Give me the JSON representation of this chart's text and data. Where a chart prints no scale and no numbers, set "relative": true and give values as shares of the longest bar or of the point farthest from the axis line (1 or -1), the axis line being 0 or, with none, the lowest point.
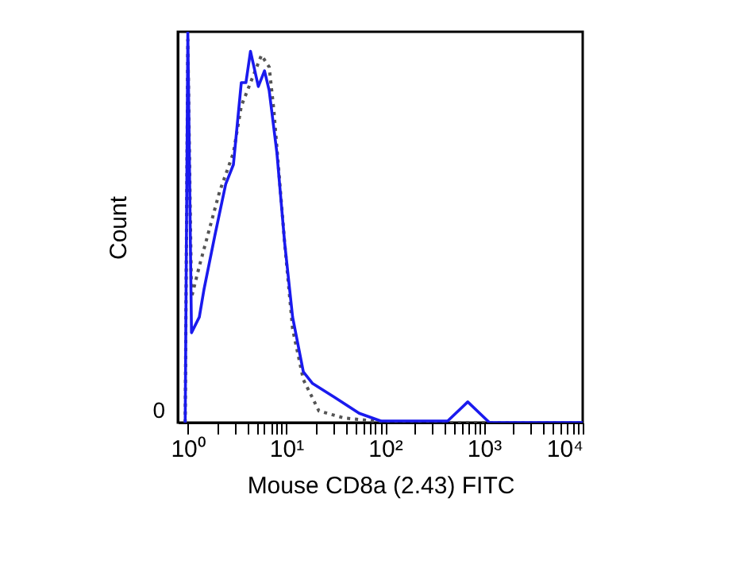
{
  "chart_data": {
    "type": "line",
    "relative": true,
    "xlabel": "Mouse CD8a (2.43) FITC",
    "ylabel": "Count",
    "log": "x",
    "grid": false,
    "legend": false,
    "marker": "none",
    "xlim": [
      0.8,
      10000
    ],
    "xticks": [
      {
        "value": 1,
        "label": "10⁰"
      },
      {
        "value": 2,
        "label": null
      },
      {
        "value": 3,
        "label": null
      },
      {
        "value": 4,
        "label": null
      },
      {
        "value": 5,
        "label": null
      },
      {
        "value": 6,
        "label": null
      },
      {
        "value": 7,
        "label": null
      },
      {
        "value": 8,
        "label": null
      },
      {
        "value": 9,
        "label": null
      },
      {
        "value": 10,
        "label": "10¹"
      },
      {
        "value": 20,
        "label": null
      },
      {
        "value": 30,
        "label": null
      },
      {
        "value": 40,
        "label": null
      },
      {
        "value": 50,
        "label": null
      },
      {
        "value": 60,
        "label": null
      },
      {
        "value": 70,
        "label": null
      },
      {
        "value": 80,
        "label": null
      },
      {
        "value": 90,
        "label": null
      },
      {
        "value": 100,
        "label": "10²"
      },
      {
        "value": 200,
        "label": null
      },
      {
        "value": 300,
        "label": null
      },
      {
        "value": 400,
        "label": null
      },
      {
        "value": 500,
        "label": null
      },
      {
        "value": 600,
        "label": null
      },
      {
        "value": 700,
        "label": null
      },
      {
        "value": 800,
        "label": null
      },
      {
        "value": 900,
        "label": null
      },
      {
        "value": 1000,
        "label": "10³"
      },
      {
        "value": 2000,
        "label": null
      },
      {
        "value": 3000,
        "label": null
      },
      {
        "value": 4000,
        "label": null
      },
      {
        "value": 5000,
        "label": null
      },
      {
        "value": 6000,
        "label": null
      },
      {
        "value": 7000,
        "label": null
      },
      {
        "value": 8000,
        "label": null
      },
      {
        "value": 9000,
        "label": null
      },
      {
        "value": 10000,
        "label": "10⁴"
      }
    ],
    "annotations": [
      "0"
    ],
    "series": [
      {
        "color": "#555555",
        "line_style": "dotted",
        "x": [
          0.95,
          1.01,
          1.1,
          1.32,
          2.11,
          2.92,
          3.51,
          4.68,
          5.61,
          6.72,
          7.49,
          9.64,
          11.6,
          14.9,
          21.4,
          38.1,
          78.5,
          121,
          10000
        ],
        "values": [
          0,
          0.98,
          0.32,
          0.4,
          0.59,
          0.69,
          0.81,
          0.89,
          0.94,
          0.91,
          0.8,
          0.46,
          0.24,
          0.11,
          0.03,
          0.012,
          0.004,
          0,
          0
        ]
      },
      {
        "color": "#1a1aee",
        "line_style": "solid",
        "x": [
          0.95,
          1.01,
          1.1,
          1.32,
          1.47,
          1.9,
          2.44,
          2.92,
          3.51,
          3.91,
          4.35,
          5.22,
          6.03,
          6.72,
          8.05,
          9.64,
          11.6,
          14.9,
          18.5,
          30.7,
          54.7,
          90.7,
          101,
          430,
          687,
          1140,
          10000
        ],
        "values": [
          0,
          1,
          0.23,
          0.27,
          0.34,
          0.48,
          0.61,
          0.66,
          0.87,
          0.87,
          0.95,
          0.86,
          0.9,
          0.85,
          0.69,
          0.46,
          0.27,
          0.13,
          0.1,
          0.065,
          0.024,
          0.004,
          0.004,
          0.004,
          0.053,
          0,
          0
        ]
      }
    ]
  }
}
